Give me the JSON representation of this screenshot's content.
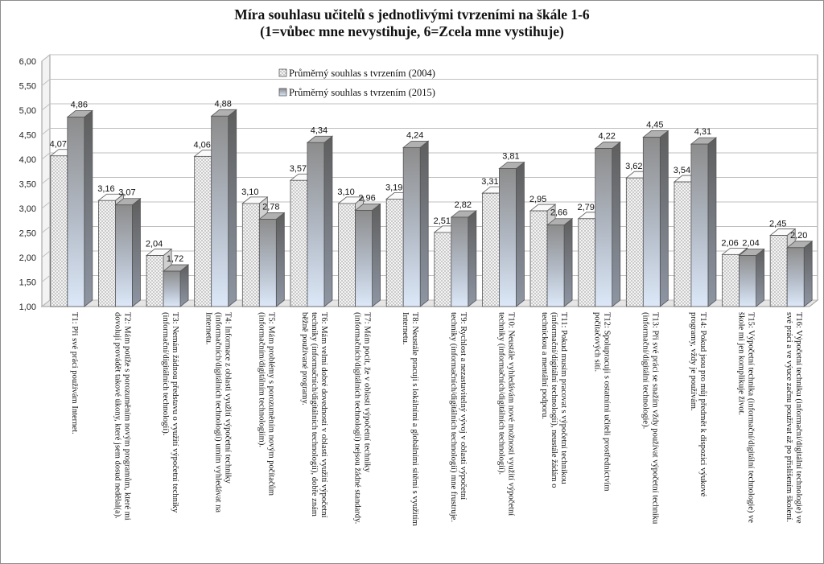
{
  "chart_data": {
    "type": "bar",
    "title": "Míra souhlasu učitelů s jednotlivými tvrzeními na škále 1-6",
    "subtitle": "(1=vůbec mne nevystihuje, 6=Zcela mne vystihuje)",
    "ylim": [
      1,
      6
    ],
    "yticks": [
      "1,00",
      "1,50",
      "2,00",
      "2,50",
      "3,00",
      "3,50",
      "4,00",
      "4,50",
      "5,00",
      "5,50",
      "6,00"
    ],
    "grid": true,
    "legend_position": "top-center",
    "colors": {
      "series1_fill": "#f2f2f2",
      "series1_dots": "#8a8a8a",
      "series2_top": "#8c8c8c",
      "series2_bottom": "#d9e6f7",
      "grid": "#bfbfbf"
    },
    "categories": [
      [
        "T1: Při své práci používám Internet."
      ],
      [
        "T2: Mám potíže s porozuměním novým programům, které mi",
        "dovolují provádět takové úkony, které jsem dosud nedělal(a)."
      ],
      [
        "T3: Nemám žádnou představu o využití výpočetní techniky",
        "(informační/digitálních technologií)."
      ],
      [
        "T4: Informace z oblasti využití výpočetní techniky",
        "(informačních/digitálních technologií) umím vyhledávat na",
        "Internetu."
      ],
      [
        "T5: Mám problémy s porozuměním novým počítačům",
        "(informačním/digitálním technologiím)."
      ],
      [
        "T6: Mám velmi dobré dovednosti v oblasti využití výpočetní",
        "techniky (informačních/digitálních technologií), dobře znám",
        "běžně používané programy."
      ],
      [
        "T7: Mám pocit, že v oblasti výpočetní techniky",
        "(informačních/digitálních technologií) nejsou žádné standardy."
      ],
      [
        "T8: Neustále pracuji s lokálními a globálními sítěmi s využitím",
        "Internetu."
      ],
      [
        "T9: Rychlost a nezastavitelný vývoj v oblasti výpočetní",
        "techniky (informačních/digitálních technologií) mne frustruje."
      ],
      [
        "T10: Neustále vyhledávám nové možnosti využití výpočetní",
        "techniky (informačních/digitálních technologií)."
      ],
      [
        "T11: Pokud musím pracovat s výpočetní technikou",
        "(informační/digitální technologií), neustále žádám o",
        "technickou a mentální podporu."
      ],
      [
        "T12: Spolupracuji  s ostatními učiteli prostřednictvím",
        "počítačových  sítí."
      ],
      [
        "T13: Při své práci se snažím vždy používat výpočetní techniku",
        "(informační/digitální technologie)."
      ],
      [
        "T14: Pokud jsou pro můj předmět k dispozici výukové",
        "programy, vždy je používám."
      ],
      [
        "T15: Výpočetní technika (informační/digitální technologie)  ve",
        "škole mi jen komplikuje život."
      ],
      [
        "T16: Výpočetní techniku (informační/digitální technologie)  ve",
        "své práci a ve výuce začnu používat až po přislíšením školení."
      ]
    ],
    "series": [
      {
        "name": "Průměrný souhlas s tvrzením (2004)",
        "values": [
          4.07,
          3.16,
          2.04,
          4.06,
          3.1,
          3.57,
          3.1,
          3.19,
          2.51,
          3.31,
          2.95,
          2.79,
          3.62,
          3.54,
          2.06,
          2.45
        ],
        "labels": [
          "4,07",
          "3,16",
          "2,04",
          "4,06",
          "3,10",
          "3,57",
          "3,10",
          "3,19",
          "2,51",
          "3,31",
          "2,95",
          "2,79",
          "3,62",
          "3,54",
          "2,06",
          "2,45"
        ]
      },
      {
        "name": "Průměrný souhlas s tvrzením (2015)",
        "values": [
          4.86,
          3.07,
          1.72,
          4.88,
          2.78,
          4.34,
          2.96,
          4.24,
          2.82,
          3.81,
          2.66,
          4.22,
          4.45,
          4.31,
          2.04,
          2.2
        ],
        "labels": [
          "4,86",
          "3,07",
          "1,72",
          "4,88",
          "2,78",
          "4,34",
          "2,96",
          "4,24",
          "2,82",
          "3,81",
          "2,66",
          "4,22",
          "4,45",
          "4,31",
          "2,04",
          "2,20"
        ]
      }
    ]
  }
}
